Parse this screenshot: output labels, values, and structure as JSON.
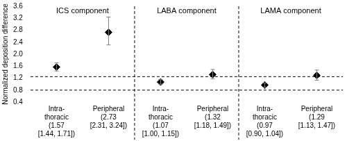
{
  "chart_data": {
    "type": "scatter",
    "y_label": "Normalized deposition difference",
    "groups": [
      "ICS component",
      "LABA component",
      "LAMA component"
    ],
    "categories": [
      [
        "Intra-",
        "thoracic"
      ],
      [
        "Peripheral"
      ],
      [
        "Intra-",
        "thoracic"
      ],
      [
        "Peripheral"
      ],
      [
        "Intra-",
        "thoracic"
      ],
      [
        "Peripheral"
      ]
    ],
    "values": [
      1.57,
      2.73,
      1.07,
      1.32,
      0.97,
      1.29
    ],
    "error_low": [
      1.44,
      2.31,
      1.0,
      1.18,
      0.9,
      1.13
    ],
    "error_high": [
      1.71,
      3.24,
      1.15,
      1.49,
      1.04,
      1.47
    ],
    "value_labels": [
      [
        "(1.57",
        "[1.44, 1.71])"
      ],
      [
        "(2.73",
        "[2.31, 3.24])"
      ],
      [
        "(1.07",
        "[1.00, 1.15])"
      ],
      [
        "(1.32",
        "[1.18, 1.49])"
      ],
      [
        "(0.97",
        "[0.90, 1.04])"
      ],
      [
        "(1.29",
        "[1.13, 1.47])"
      ]
    ],
    "reference_lines": [
      0.8,
      1.25
    ],
    "color": "#000000",
    "marker": "diamond",
    "ylim": [
      0.4,
      3.6
    ],
    "yticks": [
      0.4,
      0.8,
      1.2,
      1.6,
      {
        "value": 2,
        "label": "2.0"
      },
      2.4,
      2.8,
      3.2,
      3.6
    ],
    "grid": false
  }
}
